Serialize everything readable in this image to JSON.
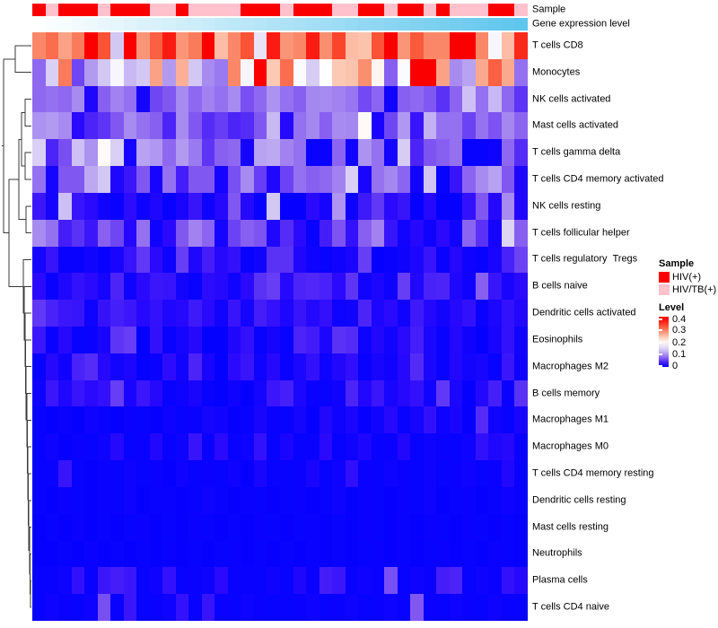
{
  "annotations": {
    "sample_label": "Sample",
    "gene_label": "Gene expression level",
    "sample_groups": [
      "HIV(+)",
      "HIV/TB(+)",
      "HIV(+)",
      "HIV(+)",
      "HIV(+)",
      "HIV/TB(+)",
      "HIV(+)",
      "HIV(+)",
      "HIV(+)",
      "HIV/TB(+)",
      "HIV/TB(+)",
      "HIV(+)",
      "HIV/TB(+)",
      "HIV/TB(+)",
      "HIV/TB(+)",
      "HIV/TB(+)",
      "HIV(+)",
      "HIV(+)",
      "HIV(+)",
      "HIV/TB(+)",
      "HIV(+)",
      "HIV(+)",
      "HIV(+)",
      "HIV/TB(+)",
      "HIV/TB(+)",
      "HIV(+)",
      "HIV(+)",
      "HIV/TB(+)",
      "HIV(+)",
      "HIV(+)",
      "HIV/TB(+)",
      "HIV(+)",
      "HIV/TB(+)",
      "HIV/TB(+)",
      "HIV/TB(+)",
      "HIV(+)",
      "HIV(+)",
      "HIV/TB(+)"
    ],
    "gene_levels": [
      0,
      0.03,
      0.05,
      0.08,
      0.11,
      0.14,
      0.16,
      0.19,
      0.22,
      0.24,
      0.27,
      0.3,
      0.32,
      0.35,
      0.38,
      0.41,
      0.43,
      0.46,
      0.49,
      0.51,
      0.54,
      0.57,
      0.59,
      0.62,
      0.65,
      0.68,
      0.7,
      0.73,
      0.76,
      0.78,
      0.81,
      0.84,
      0.86,
      0.89,
      0.92,
      0.95,
      0.97,
      1
    ]
  },
  "chart_data": {
    "type": "heatmap",
    "n_columns": 38,
    "value_range": [
      0,
      0.42
    ],
    "colormap": {
      "low": "#0000FF",
      "mid": "#FFFFFF",
      "high": "#FA0000",
      "mid_value": 0.2
    },
    "rows": [
      {
        "label": "T cells CD8",
        "values": [
          0.3,
          0.32,
          0.28,
          0.31,
          0.4,
          0.34,
          0.14,
          0.4,
          0.29,
          0.33,
          0.38,
          0.29,
          0.31,
          0.4,
          0.26,
          0.3,
          0.34,
          0.17,
          0.38,
          0.29,
          0.3,
          0.38,
          0.295,
          0.35,
          0.26,
          0.255,
          0.34,
          0.4,
          0.29,
          0.335,
          0.3,
          0.3,
          0.4,
          0.4,
          0.3,
          0.19,
          0.26,
          0.37
        ]
      },
      {
        "label": "Monocytes",
        "values": [
          0.08,
          0.15,
          0.31,
          0.06,
          0.11,
          0.14,
          0.19,
          0.13,
          0.14,
          0.28,
          0.11,
          0.27,
          0.14,
          0.1,
          0.09,
          0.3,
          0.19,
          0.4,
          0.25,
          0.32,
          0.195,
          0.145,
          0.2,
          0.25,
          0.255,
          0.295,
          0.21,
          0.075,
          0.195,
          0.4,
          0.4,
          0.28,
          0.1,
          0.115,
          0.275,
          0.33,
          0.275,
          0.085
        ]
      },
      {
        "label": "NK cells activated",
        "values": [
          0.08,
          0.085,
          0.08,
          0.1,
          0.015,
          0.075,
          0.095,
          0.085,
          0.01,
          0.06,
          0.07,
          0.1,
          0.08,
          0.095,
          0.085,
          0.1,
          0.065,
          0.08,
          0.105,
          0.085,
          0.075,
          0.098,
          0.1,
          0.095,
          0.088,
          0.062,
          0.078,
          0.008,
          0.075,
          0.08,
          0.07,
          0.048,
          0.078,
          0.135,
          0.085,
          0.13,
          0.08,
          0.05
        ]
      },
      {
        "label": "Mast cells activated",
        "values": [
          0.105,
          0.11,
          0.1,
          0.02,
          0.04,
          0.05,
          0.07,
          0.1,
          0.085,
          0.075,
          0.04,
          0.1,
          0.07,
          0.045,
          0.055,
          0.04,
          0.045,
          0.07,
          0.13,
          0.018,
          0.085,
          0.098,
          0.075,
          0.1,
          0.098,
          0.205,
          0.012,
          0.06,
          0.108,
          0.028,
          0.125,
          0.085,
          0.085,
          0.058,
          0.086,
          0.068,
          0.098,
          0.078
        ]
      },
      {
        "label": "T cells gamma delta",
        "values": [
          0.15,
          0.04,
          0.065,
          0.135,
          0.105,
          0.205,
          0.15,
          0.01,
          0.115,
          0.108,
          0.08,
          0.11,
          0.09,
          0.05,
          0.075,
          0.08,
          0.01,
          0.115,
          0.12,
          0.095,
          0.085,
          0.005,
          0.005,
          0.078,
          0.008,
          0.105,
          0.085,
          0.01,
          0.145,
          0.04,
          0.068,
          0.075,
          0.085,
          0.004,
          0.004,
          0.006,
          0.08,
          0.045
        ]
      },
      {
        "label": "T cells CD4 memory activated",
        "values": [
          0.085,
          0.01,
          0.07,
          0.07,
          0.12,
          0.14,
          0.015,
          0.03,
          0.07,
          0.01,
          0.085,
          0.035,
          0.07,
          0.07,
          0.01,
          0.065,
          0.1,
          0.055,
          0.015,
          0.058,
          0.085,
          0.075,
          0.08,
          0.095,
          0.15,
          0.012,
          0.086,
          0.098,
          0.078,
          0.008,
          0.138,
          0.004,
          0.028,
          0.078,
          0.1,
          0.115,
          0.07,
          0.015
        ]
      },
      {
        "label": "NK cells resting",
        "values": [
          0.03,
          0.01,
          0.135,
          0.028,
          0.02,
          0.008,
          0.005,
          0.022,
          0.006,
          0.015,
          0.004,
          0.012,
          0.028,
          0.006,
          0.018,
          0.07,
          0.018,
          0.004,
          0.14,
          0.003,
          0.003,
          0.02,
          0.01,
          0.107,
          0.006,
          0.032,
          0.052,
          0.02,
          0.028,
          0.003,
          0.018,
          0.002,
          0.002,
          0.026,
          0.07,
          0.018,
          0.1,
          0.015
        ]
      },
      {
        "label": "T cells follicular helper",
        "values": [
          0.1,
          0.085,
          0.035,
          0.048,
          0.03,
          0.075,
          0.06,
          0.018,
          0.085,
          0.007,
          0.02,
          0.07,
          0.095,
          0.078,
          0.01,
          0.058,
          0.075,
          0.068,
          0.015,
          0.045,
          0.02,
          0.005,
          0.035,
          0.068,
          0.026,
          0.075,
          0.095,
          0.028,
          0.008,
          0.018,
          0.006,
          0.02,
          0.008,
          0.078,
          0.048,
          0.01,
          0.155,
          0.075
        ]
      },
      {
        "label": "T cells regulatory  Tregs",
        "values": [
          0.01,
          0.028,
          0.005,
          0.005,
          0.008,
          0.005,
          0.012,
          0.028,
          0.052,
          0.02,
          0.006,
          0.055,
          0.015,
          0.035,
          0.018,
          0.025,
          0.005,
          0.008,
          0.048,
          0.048,
          0.015,
          0.006,
          0.004,
          0.007,
          0.012,
          0.055,
          0.003,
          0.005,
          0.007,
          0.014,
          0.028,
          0.005,
          0.018,
          0.006,
          0.004,
          0.012,
          0.038,
          0.058
        ]
      },
      {
        "label": "B cells naive",
        "values": [
          0.02,
          0.005,
          0.015,
          0.026,
          0.02,
          0.01,
          0.04,
          0.007,
          0.02,
          0.03,
          0.028,
          0.009,
          0.004,
          0.022,
          0.018,
          0.008,
          0.02,
          0.048,
          0.055,
          0.018,
          0.04,
          0.042,
          0.038,
          0.02,
          0.05,
          0.008,
          0.014,
          0.006,
          0.055,
          0.016,
          0.038,
          0.04,
          0.015,
          0.007,
          0.075,
          0.028,
          0.012,
          0.02
        ]
      },
      {
        "label": "Dendritic cells activated",
        "values": [
          0.052,
          0.038,
          0.03,
          0.028,
          0.006,
          0.027,
          0.036,
          0.03,
          0.018,
          0.026,
          0.015,
          0.018,
          0.032,
          0.02,
          0.008,
          0.028,
          0.01,
          0.035,
          0.026,
          0.014,
          0.028,
          0.017,
          0.025,
          0.006,
          0.008,
          0.04,
          0.014,
          0.02,
          0.007,
          0.032,
          0.017,
          0.009,
          0.018,
          0.025,
          0.005,
          0.013,
          0.026,
          0.016
        ]
      },
      {
        "label": "Eosinophils",
        "values": [
          0.03,
          0.005,
          0.018,
          0.004,
          0.005,
          0.012,
          0.05,
          0.055,
          0.002,
          0.025,
          0.005,
          0.01,
          0.018,
          0.002,
          0.002,
          0.015,
          0.025,
          0.004,
          0.01,
          0.004,
          0.04,
          0.034,
          0.014,
          0.048,
          0.045,
          0.006,
          0.016,
          0.008,
          0.02,
          0.036,
          0.013,
          0.005,
          0.017,
          0.007,
          0.003,
          0.011,
          0.026,
          0.008
        ]
      },
      {
        "label": "Macrophages M2",
        "values": [
          0.004,
          0.018,
          0.007,
          0.038,
          0.045,
          0.018,
          0.009,
          0.014,
          0.003,
          0.005,
          0.022,
          0.008,
          0.04,
          0.012,
          0.002,
          0.02,
          0.028,
          0.006,
          0.018,
          0.005,
          0.013,
          0.025,
          0.006,
          0.016,
          0.024,
          0.004,
          0.011,
          0.007,
          0.018,
          0.044,
          0.013,
          0.005,
          0.016,
          0.009,
          0.011,
          0.004,
          0.03,
          0.007
        ]
      },
      {
        "label": "B cells memory",
        "values": [
          0.006,
          0.03,
          0.015,
          0.028,
          0.02,
          0.025,
          0.055,
          0.012,
          0.03,
          0.018,
          0.004,
          0.006,
          0.012,
          0.004,
          0.002,
          0.006,
          0.003,
          0.01,
          0.03,
          0.036,
          0.013,
          0.005,
          0.004,
          0.007,
          0.04,
          0.016,
          0.03,
          0.011,
          0.018,
          0.025,
          0.008,
          0.052,
          0.013,
          0.003,
          0.017,
          0.036,
          0.005,
          0.048
        ]
      },
      {
        "label": "Macrophages M1",
        "values": [
          0.004,
          0.003,
          0.005,
          0.003,
          0.006,
          0.004,
          0.003,
          0.005,
          0.004,
          0.003,
          0.006,
          0.004,
          0.005,
          0.01,
          0.008,
          0.003,
          0.004,
          0.012,
          0.005,
          0.004,
          0.01,
          0.003,
          0.016,
          0.006,
          0.012,
          0.003,
          0.008,
          0.018,
          0.004,
          0.01,
          0.025,
          0.006,
          0.012,
          0.003,
          0.045,
          0.008,
          0.004,
          0.012
        ]
      },
      {
        "label": "Macrophages M0",
        "values": [
          0.004,
          0.006,
          0.003,
          0.005,
          0.004,
          0.006,
          0.018,
          0.004,
          0.005,
          0.016,
          0.004,
          0.006,
          0.028,
          0.005,
          0.02,
          0.004,
          0.006,
          0.026,
          0.004,
          0.012,
          0.004,
          0.005,
          0.02,
          0.004,
          0.006,
          0.014,
          0.004,
          0.005,
          0.016,
          0.004,
          0.006,
          0.005,
          0.004,
          0.006,
          0.025,
          0.015,
          0.018,
          0.005
        ]
      },
      {
        "label": "T cells CD4 memory resting",
        "values": [
          0.004,
          0.005,
          0.028,
          0.004,
          0.003,
          0.005,
          0.004,
          0.006,
          0.004,
          0.005,
          0.003,
          0.006,
          0.004,
          0.005,
          0.004,
          0.006,
          0.003,
          0.012,
          0.004,
          0.004,
          0.005,
          0.012,
          0.004,
          0.006,
          0.024,
          0.005,
          0.004,
          0.006,
          0.005,
          0.004,
          0.006,
          0.004,
          0.005,
          0.006,
          0.004,
          0.005,
          0.016,
          0.004
        ]
      },
      {
        "label": "Dendritic cells resting",
        "values": [
          0.004,
          0.003,
          0.005,
          0.004,
          0.003,
          0.005,
          0.004,
          0.006,
          0.003,
          0.004,
          0.005,
          0.003,
          0.004,
          0.006,
          0.004,
          0.003,
          0.005,
          0.004,
          0.003,
          0.004,
          0.005,
          0.003,
          0.004,
          0.006,
          0.003,
          0.005,
          0.004,
          0.003,
          0.005,
          0.004,
          0.006,
          0.003,
          0.004,
          0.005,
          0.003,
          0.004,
          0.006,
          0.004
        ]
      },
      {
        "label": "Mast cells resting",
        "values": [
          0.003,
          0.004,
          0.003,
          0.005,
          0.003,
          0.004,
          0.003,
          0.004,
          0.005,
          0.003,
          0.004,
          0.003,
          0.005,
          0.004,
          0.003,
          0.004,
          0.003,
          0.005,
          0.004,
          0.003,
          0.004,
          0.005,
          0.003,
          0.004,
          0.003,
          0.005,
          0.004,
          0.003,
          0.004,
          0.003,
          0.005,
          0.004,
          0.003,
          0.005,
          0.004,
          0.003,
          0.004,
          0.003
        ]
      },
      {
        "label": "Neutrophils",
        "values": [
          0.003,
          0.003,
          0.004,
          0.003,
          0.005,
          0.003,
          0.004,
          0.003,
          0.004,
          0.003,
          0.005,
          0.003,
          0.004,
          0.003,
          0.004,
          0.005,
          0.003,
          0.004,
          0.003,
          0.004,
          0.003,
          0.005,
          0.003,
          0.004,
          0.003,
          0.004,
          0.005,
          0.003,
          0.004,
          0.003,
          0.004,
          0.005,
          0.003,
          0.004,
          0.003,
          0.005,
          0.004,
          0.003
        ]
      },
      {
        "label": "Plasma cells",
        "values": [
          0.004,
          0.005,
          0.006,
          0.025,
          0.005,
          0.03,
          0.035,
          0.03,
          0.004,
          0.006,
          0.026,
          0.004,
          0.005,
          0.006,
          0.02,
          0.004,
          0.005,
          0.004,
          0.006,
          0.004,
          0.015,
          0.005,
          0.035,
          0.03,
          0.004,
          0.006,
          0.005,
          0.065,
          0.004,
          0.006,
          0.005,
          0.035,
          0.04,
          0.004,
          0.006,
          0.005,
          0.025,
          0.018
        ]
      },
      {
        "label": "T cells CD4 naive",
        "values": [
          0.004,
          0.006,
          0.005,
          0.004,
          0.006,
          0.065,
          0.005,
          0.03,
          0.004,
          0.005,
          0.006,
          0.026,
          0.004,
          0.028,
          0.005,
          0.004,
          0.006,
          0.005,
          0.004,
          0.004,
          0.005,
          0.006,
          0.004,
          0.005,
          0.006,
          0.004,
          0.005,
          0.006,
          0.004,
          0.07,
          0.005,
          0.004,
          0.006,
          0.005,
          0.004,
          0.006,
          0.005,
          0.004
        ]
      }
    ]
  },
  "legend": {
    "sample_title": "Sample",
    "sample_items": [
      {
        "label": "HIV(+)",
        "color": "#FA0000"
      },
      {
        "label": "HIV/TB(+)",
        "color": "#FFC1CC"
      }
    ],
    "level_title": "Level",
    "level_ticks": [
      "0.4",
      "0.3",
      "0.2",
      "0.1",
      "0"
    ]
  },
  "colors": {
    "hiv": "#FA0000",
    "hivtb": "#FFC1CC",
    "gene_low": "#FFFFFF",
    "gene_high": "#5FC6ED",
    "dendrogram": "#3a3a3a"
  }
}
